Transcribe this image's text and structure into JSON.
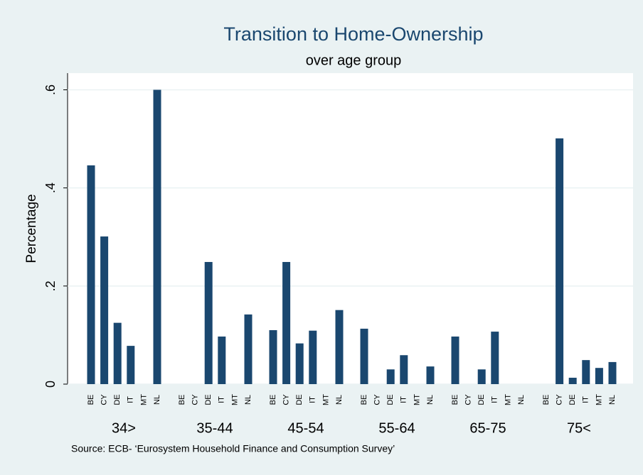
{
  "chart_data": {
    "type": "grouped-bar",
    "title": "Transition to Home-Ownership",
    "subtitle": "over age group",
    "y_label": "Percentage",
    "note": "Source: ECB- ‘Eurosystem Household Finance and Consumption Survey’",
    "categories": [
      "34>",
      "35-44",
      "45-54",
      "55-64",
      "65-75",
      "75<"
    ],
    "subcategories": [
      "BE",
      "CY",
      "DE",
      "IT",
      "MT",
      "NL"
    ],
    "values": [
      [
        0.446,
        0.301,
        0.125,
        0.078,
        0,
        0.6
      ],
      [
        0,
        0,
        0.249,
        0.097,
        0,
        0.142
      ],
      [
        0.11,
        0.249,
        0.083,
        0.109,
        0,
        0.151
      ],
      [
        0.113,
        0,
        0.03,
        0.059,
        0,
        0.036
      ],
      [
        0.097,
        0,
        0.03,
        0.107,
        0,
        0
      ],
      [
        0,
        0.501,
        0.013,
        0.049,
        0.033,
        0.045
      ]
    ],
    "color": "#1a476f",
    "ylim": [
      0,
      0.634
    ],
    "yticks": [
      {
        "value": 0,
        "label": "0"
      },
      {
        "value": 0.2,
        "label": ".2"
      },
      {
        "value": 0.4,
        "label": ".4"
      },
      {
        "value": 0.6,
        "label": ".6"
      }
    ],
    "grid": true
  }
}
